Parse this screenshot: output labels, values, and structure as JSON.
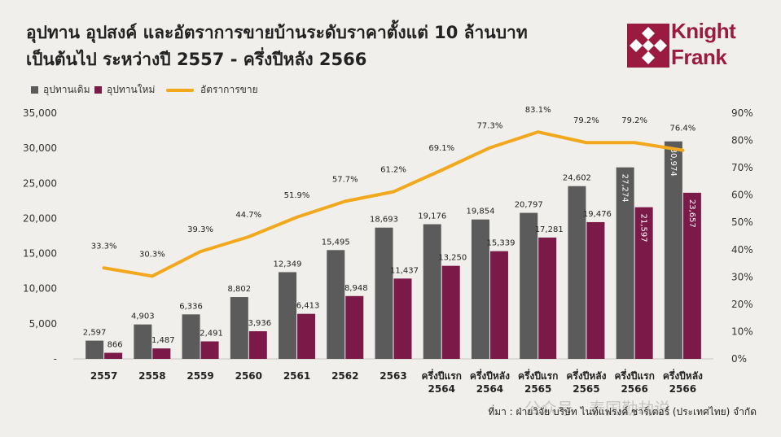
{
  "title_line1": "อุปทาน อุปสงค์ และอัตราการขายบ้านระดับราคาตั้งแต่ 10 ล้านบาท",
  "title_line2": "เป็นต้นไป ระหว่างปี 2557 - ครึ่งปีหลัง 2566",
  "logo": {
    "line1": "Knight",
    "line2": "Frank",
    "color": "#9b1b40"
  },
  "source": "ที่มา : ฝ่ายวิจัย บริษัท ไนท์แฟรงค์ ชาร์เตอร์ (ประเทศไทย) จำกัด",
  "watermark": "公众号 · 泰国勤劫说",
  "chart_data": {
    "type": "bar",
    "categories": [
      [
        "2557"
      ],
      [
        "2558"
      ],
      [
        "2559"
      ],
      [
        "2560"
      ],
      [
        "2561"
      ],
      [
        "2562"
      ],
      [
        "2563"
      ],
      [
        "ครึ่งปีแรก",
        "2564"
      ],
      [
        "ครึ่งปีหลัง",
        "2564"
      ],
      [
        "ครึ่งปีแรก",
        "2565"
      ],
      [
        "ครึ่งปีหลัง",
        "2565"
      ],
      [
        "ครึ่งปีแรก",
        "2566"
      ],
      [
        "ครึ่งปีหลัง",
        "2566"
      ]
    ],
    "series": [
      {
        "name": "อุปทานเดิม",
        "kind": "bar",
        "axis": "left",
        "color": "#5a5b5a",
        "values": [
          2597,
          4903,
          6336,
          8802,
          12349,
          15495,
          18693,
          19176,
          19854,
          20797,
          24602,
          27274,
          30974
        ],
        "labels": [
          "2,597",
          "4,903",
          "6,336",
          "8,802",
          "12,349",
          "15,495",
          "18,693",
          "19,176",
          "19,854",
          "20,797",
          "24,602",
          "27,274",
          "30,974"
        ]
      },
      {
        "name": "อุปทานใหม่",
        "kind": "bar",
        "axis": "left",
        "color": "#7b1948",
        "values": [
          866,
          1487,
          2491,
          3936,
          6413,
          8948,
          11437,
          13250,
          15339,
          17281,
          19476,
          21597,
          23657
        ],
        "labels": [
          "866",
          "1,487",
          "2,491",
          "3,936",
          "6,413",
          "8,948",
          "11,437",
          "13,250",
          "15,339",
          "17,281",
          "19,476",
          "21,597",
          "23,657"
        ]
      },
      {
        "name": "อัตราการขาย",
        "kind": "line",
        "axis": "right",
        "color": "#f2a81d",
        "values": [
          33.3,
          30.3,
          39.3,
          44.7,
          51.9,
          57.7,
          61.2,
          69.1,
          77.3,
          83.1,
          79.2,
          79.2,
          76.4
        ],
        "labels": [
          "33.3%",
          "30.3%",
          "39.3%",
          "44.7%",
          "51.9%",
          "57.7%",
          "61.2%",
          "69.1%",
          "77.3%",
          "83.1%",
          "79.2%",
          "79.2%",
          "76.4%"
        ]
      }
    ],
    "y_left": {
      "ylim": [
        0,
        35000
      ],
      "ticks": [
        0,
        5000,
        10000,
        15000,
        20000,
        25000,
        30000,
        35000
      ],
      "tick_labels": [
        "-",
        "5,000",
        "10,000",
        "15,000",
        "20,000",
        "25,000",
        "30,000",
        "35,000"
      ]
    },
    "y_right": {
      "ylim": [
        0,
        90
      ],
      "ticks": [
        0,
        10,
        20,
        30,
        40,
        50,
        60,
        70,
        80,
        90
      ],
      "tick_labels": [
        "0%",
        "10%",
        "20%",
        "30%",
        "40%",
        "50%",
        "60%",
        "70%",
        "80%",
        "90%"
      ]
    },
    "vertical_labels_from_index": 11,
    "grid": false,
    "legend_position": "top-left"
  }
}
